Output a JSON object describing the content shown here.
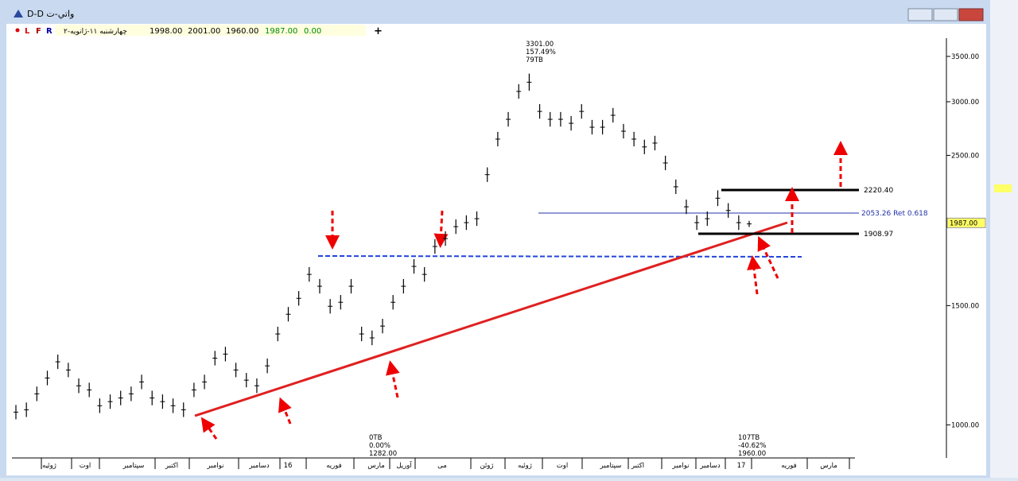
{
  "window": {
    "title": "D-D واتي-ت"
  },
  "toolbar": {
    "flags": [
      "L",
      "F",
      "R"
    ],
    "date": "چهارشنبه ۱۱-ژانویه-۲",
    "open": "1998.00",
    "high": "2001.00",
    "low": "1960.00",
    "close": "1987.00",
    "change": "0.00"
  },
  "chart_data": {
    "type": "ohlc",
    "log_scale": true,
    "ylim": [
      896,
      3724
    ],
    "yticks": [
      {
        "value": 1000,
        "label": "1000.00"
      },
      {
        "value": 1500,
        "label": "1500.00"
      },
      {
        "value": 2500,
        "label": "2500.00"
      },
      {
        "value": 3000,
        "label": "3000.00"
      },
      {
        "value": 3500,
        "label": "3500.00"
      }
    ],
    "last_price": {
      "value": 1987,
      "label": "1987.00"
    },
    "x_labels": [
      "ژوئیه",
      "اوت",
      "سپتامبر",
      "اکتبر",
      "نوامبر",
      "دسامبر",
      "16",
      "فوریه",
      "مارس",
      "آوریل",
      "می",
      "ژوئن",
      "ژوئیه",
      "اوت",
      "سپتامبر",
      "اکتبر",
      "نوامبر",
      "دسامبر",
      "17",
      "فوریه",
      "مارس"
    ],
    "high": [
      1070,
      1079,
      1139,
      1202,
      1270,
      1235,
      1171,
      1154,
      1094,
      1109,
      1123,
      1139,
      1186,
      1123,
      1109,
      1094,
      1079,
      1154,
      1186,
      1286,
      1304,
      1235,
      1193,
      1171,
      1253,
      1396,
      1493,
      1576,
      1710,
      1642,
      1534,
      1555,
      1642,
      1396,
      1378,
      1434,
      1555,
      1642,
      1757,
      1710,
      1880,
      1931,
      2011,
      2039,
      2066,
      2400,
      2708,
      2897,
      3185,
      3301,
      2976,
      2897,
      2897,
      2858,
      2976,
      2820,
      2820,
      2937,
      2782,
      2708,
      2637,
      2672,
      2497,
      2303,
      2151,
      2039,
      2066,
      2220,
      2125,
      2039,
      2001
    ],
    "low": [
      1019,
      1027,
      1084,
      1144,
      1209,
      1176,
      1114,
      1099,
      1041,
      1056,
      1069,
      1084,
      1129,
      1069,
      1056,
      1041,
      1027,
      1099,
      1129,
      1224,
      1241,
      1176,
      1136,
      1114,
      1192,
      1329,
      1421,
      1500,
      1627,
      1563,
      1460,
      1480,
      1563,
      1329,
      1311,
      1365,
      1480,
      1563,
      1672,
      1627,
      1789,
      1838,
      1914,
      1940,
      1967,
      2284,
      2578,
      2757,
      3031,
      3114,
      2832,
      2757,
      2757,
      2720,
      2832,
      2684,
      2684,
      2795,
      2648,
      2578,
      2510,
      2543,
      2377,
      2192,
      2048,
      1940,
      1967,
      2104,
      2022,
      1940,
      1960
    ],
    "annotations": {
      "peak": [
        "3301.00",
        "157.49%",
        "79TB"
      ],
      "start": [
        "0TB",
        "0.00%",
        "1282.00"
      ],
      "now": [
        "107TB",
        "-40.62%",
        "1960.00"
      ],
      "levels": [
        "2220.40",
        "2053.26 Ret 0.618",
        "1908.97"
      ]
    }
  }
}
